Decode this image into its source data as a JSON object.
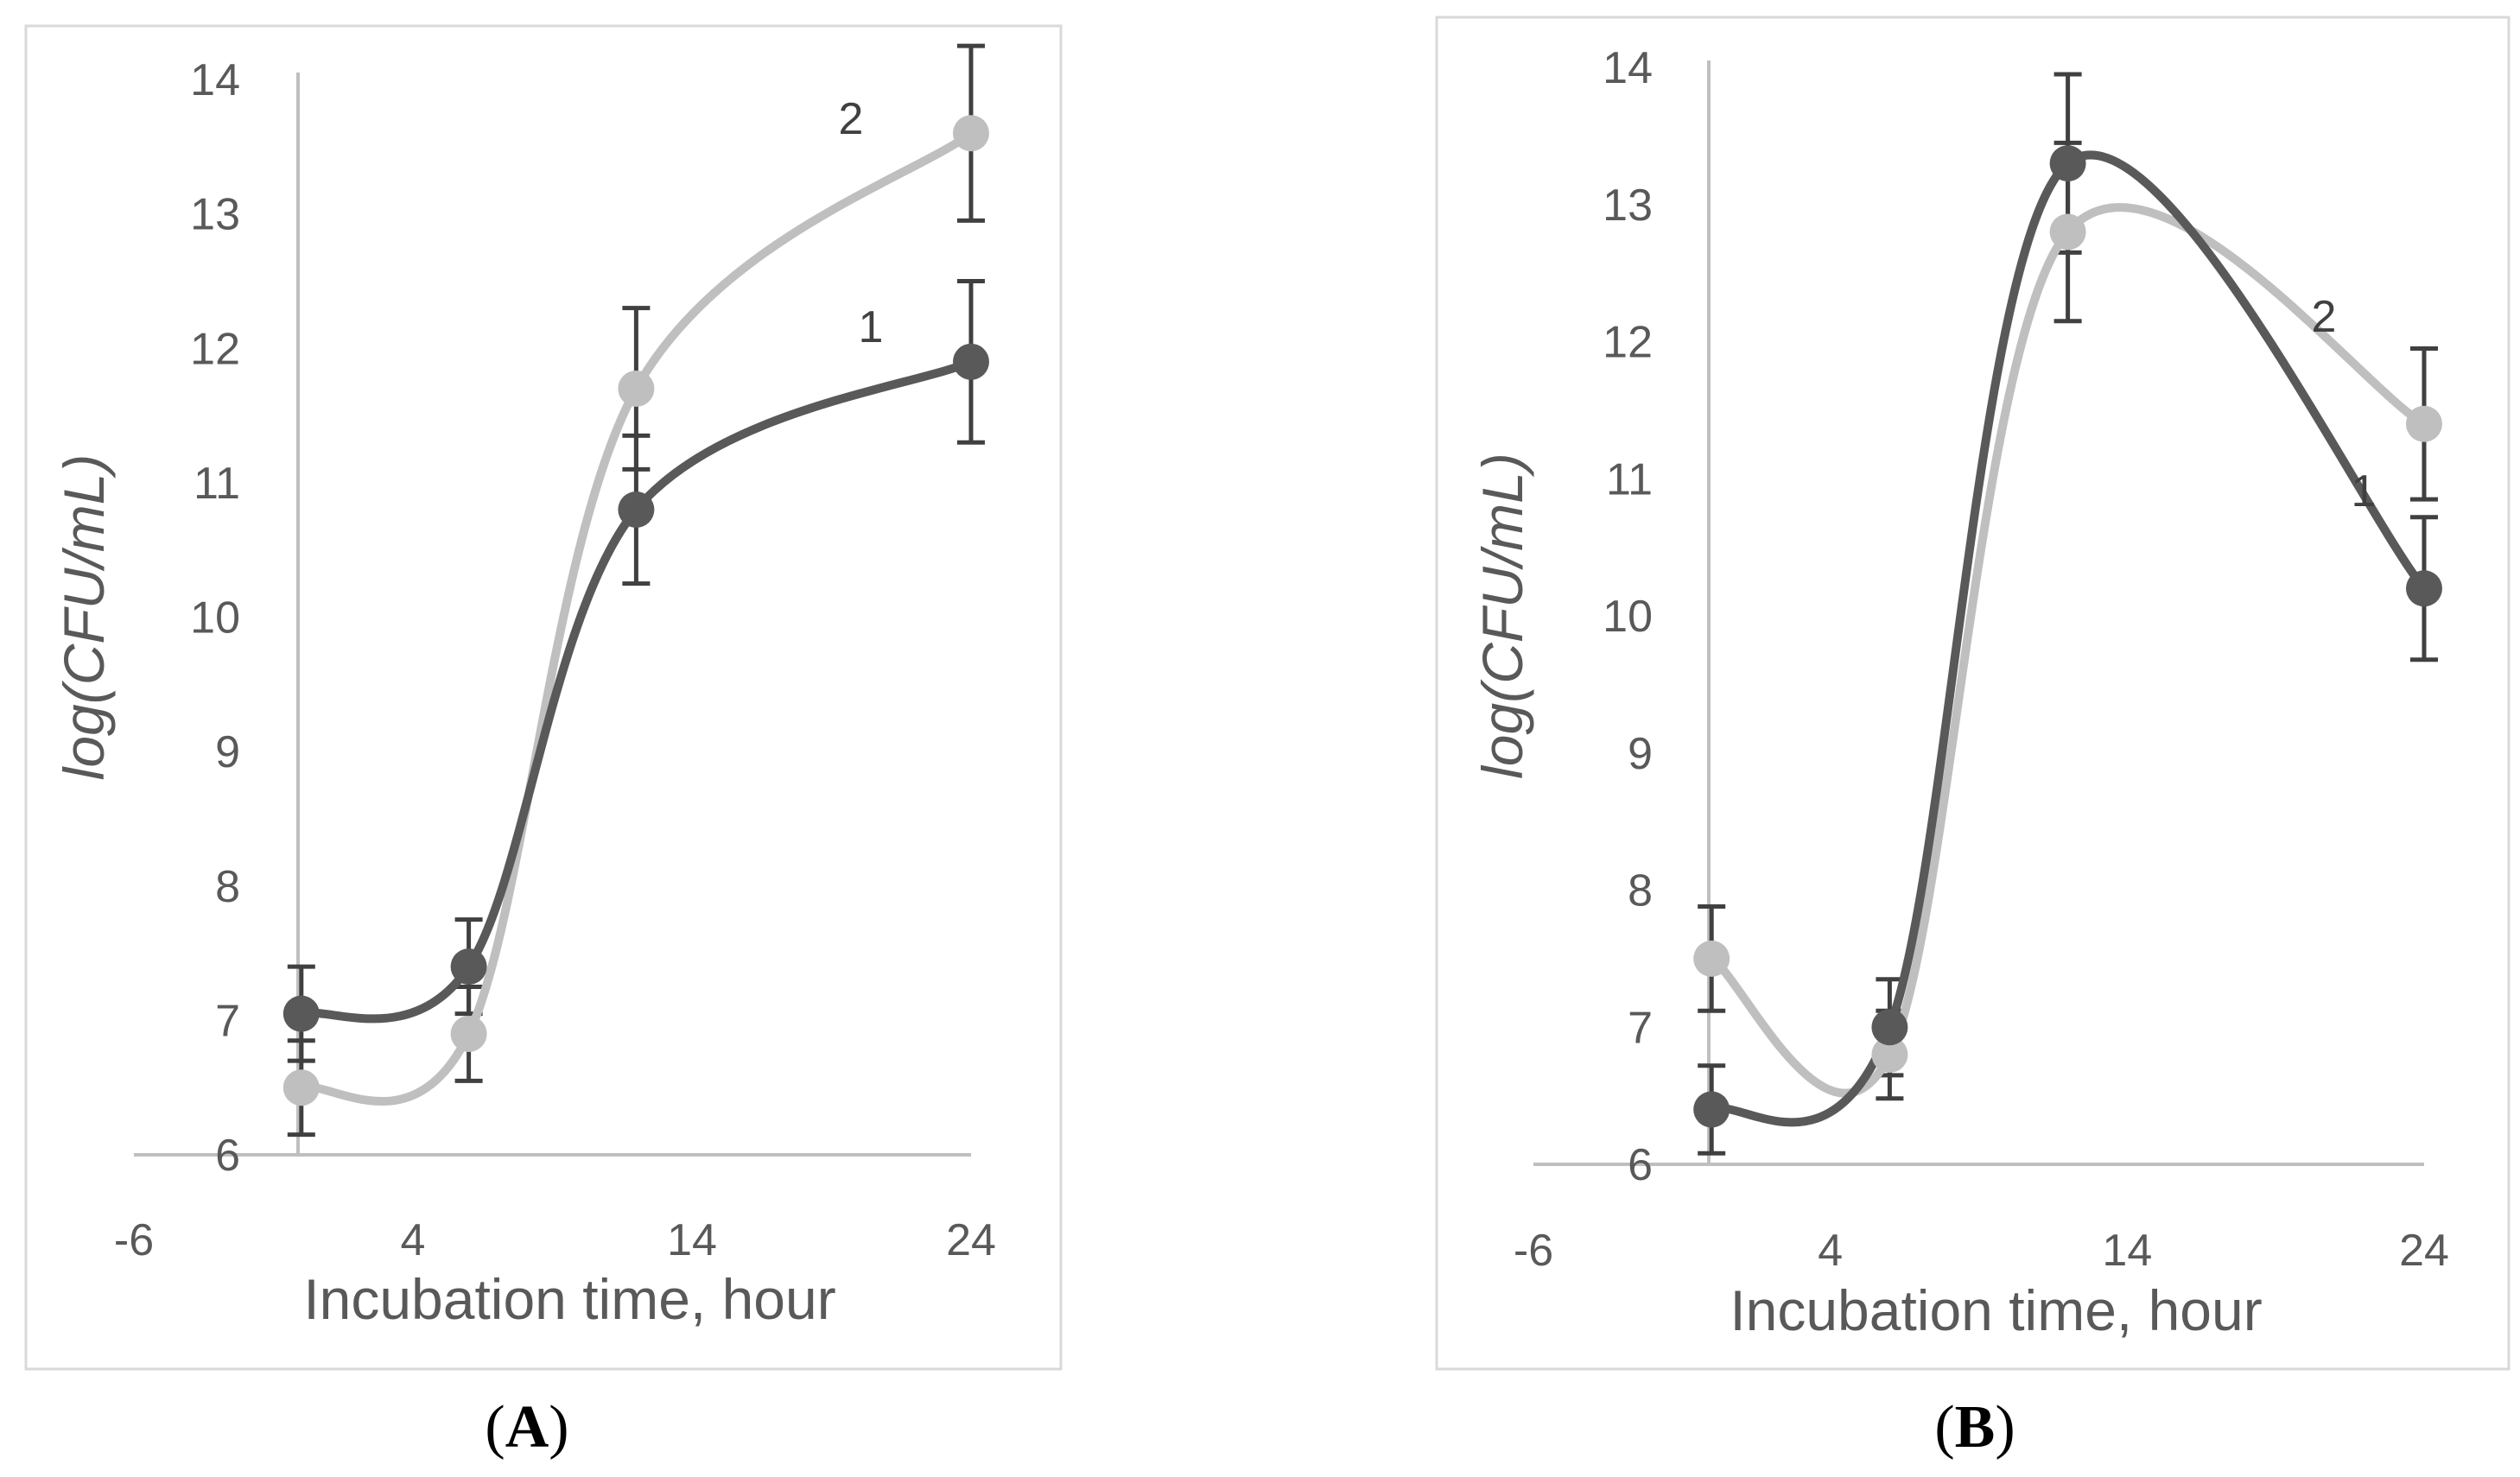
{
  "figure_title": "",
  "panel_labels": {
    "A": {
      "open": "(",
      "letter": "A",
      "close": ")"
    },
    "B": {
      "open": "(",
      "letter": "B",
      "close": ")"
    }
  },
  "colors": {
    "series_1": "#595959",
    "series_2": "#bfbfbf",
    "axis": "#bfbfbf",
    "errorbar": "#404040",
    "frame": "#d9d9d9"
  },
  "chart_data": [
    {
      "panel": "A",
      "type": "line",
      "title": "",
      "xlabel": "Incubation time, hour",
      "ylabel": "log(CFU/mL)",
      "xlim": [
        -6,
        24
      ],
      "ylim": [
        6,
        14
      ],
      "xticks": [
        "-6",
        "4",
        "14",
        "24"
      ],
      "yticks": [
        "6",
        "7",
        "8",
        "9",
        "10",
        "11",
        "12",
        "13",
        "14"
      ],
      "x": [
        0,
        6,
        12,
        24
      ],
      "series": [
        {
          "name": "1",
          "color": "#595959",
          "marker": "circle",
          "values": [
            7.05,
            7.4,
            10.8,
            11.9
          ],
          "errors": [
            0.35,
            0.35,
            0.55,
            0.6
          ]
        },
        {
          "name": "2",
          "color": "#bfbfbf",
          "marker": "circle",
          "values": [
            6.5,
            6.9,
            11.7,
            13.6
          ],
          "errors": [
            0.35,
            0.35,
            0.6,
            0.65
          ]
        }
      ]
    },
    {
      "panel": "B",
      "type": "line",
      "title": "",
      "xlabel": "Incubation time, hour",
      "ylabel": "log(CFU/mL)",
      "xlim": [
        -6,
        24
      ],
      "ylim": [
        6,
        14
      ],
      "xticks": [
        "-6",
        "4",
        "14",
        "24"
      ],
      "yticks": [
        "6",
        "7",
        "8",
        "9",
        "10",
        "11",
        "12",
        "13",
        "14"
      ],
      "x": [
        0,
        6,
        12,
        24
      ],
      "series": [
        {
          "name": "1",
          "color": "#595959",
          "marker": "circle",
          "values": [
            6.4,
            7.0,
            13.3,
            10.2
          ],
          "errors": [
            0.32,
            0.35,
            0.65,
            0.52
          ]
        },
        {
          "name": "2",
          "color": "#bfbfbf",
          "marker": "circle",
          "values": [
            7.5,
            6.8,
            12.8,
            11.4
          ],
          "errors": [
            0.38,
            0.32,
            0.65,
            0.55
          ]
        }
      ]
    }
  ]
}
